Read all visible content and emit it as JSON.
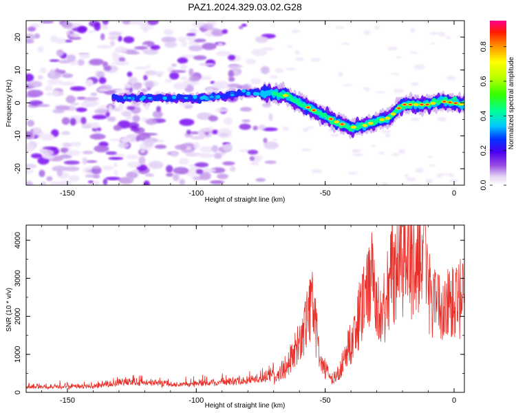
{
  "title": "PAZ1.2024.329.03.02.G28",
  "chart_data": [
    {
      "type": "heatmap",
      "xlabel": "Height of straight line (km)",
      "ylabel": "Frequency (Hz)",
      "xlim": [
        -166,
        4
      ],
      "ylim": [
        -25,
        25
      ],
      "x_ticks": [
        -150,
        -100,
        -50,
        0
      ],
      "y_ticks": [
        -20,
        -10,
        0,
        10,
        20
      ],
      "colorbar": {
        "label": "Normalized spectral amplitude",
        "range": [
          0,
          0.95
        ],
        "ticks": [
          0.0,
          0.2,
          0.4,
          0.6,
          0.8
        ]
      },
      "ridge": {
        "x": [
          -130,
          -120,
          -110,
          -100,
          -90,
          -80,
          -72,
          -66,
          -60,
          -55,
          -50,
          -45,
          -40,
          -35,
          -30,
          -25,
          -20,
          -15,
          -10,
          -5,
          0,
          4
        ],
        "y": [
          1.5,
          1.5,
          1.5,
          1.5,
          2,
          3,
          3,
          2.5,
          0,
          -2,
          -4,
          -6,
          -7.5,
          -7,
          -5.5,
          -4.5,
          -0.5,
          -0.5,
          -0.5,
          0.5,
          0,
          -0.5
        ]
      }
    },
    {
      "type": "line",
      "xlabel": "Height of straight line (km)",
      "ylabel": "SNR (10 * v/v)",
      "xlim": [
        -166,
        4
      ],
      "ylim": [
        0,
        4400
      ],
      "x_ticks": [
        -150,
        -100,
        -50,
        0
      ],
      "y_ticks": [
        0,
        1000,
        2000,
        3000,
        4000
      ],
      "color": "#e8302a",
      "envelope": {
        "x": [
          -166,
          -140,
          -125,
          -110,
          -95,
          -85,
          -75,
          -70,
          -65,
          -60,
          -55,
          -52,
          -48,
          -45,
          -40,
          -35,
          -32,
          -30,
          -28,
          -25,
          -20,
          -15,
          -12,
          -10,
          -8,
          -5,
          0,
          4
        ],
        "y": [
          100,
          120,
          200,
          150,
          180,
          200,
          250,
          350,
          700,
          1300,
          2300,
          900,
          350,
          500,
          1300,
          2400,
          3000,
          2200,
          1900,
          3000,
          3600,
          3400,
          3700,
          2800,
          2300,
          2200,
          2300,
          2500
        ]
      }
    }
  ]
}
